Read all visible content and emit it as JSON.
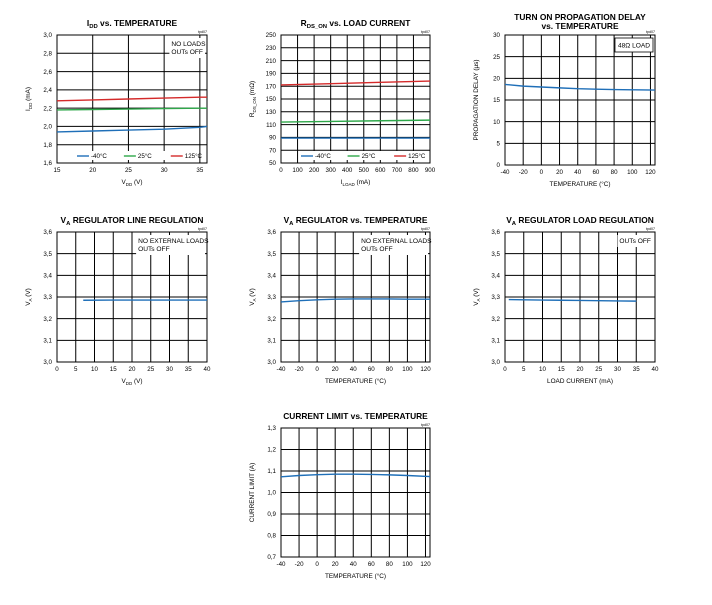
{
  "chart_data": [
    {
      "type": "line",
      "title": "I_DD vs. TEMPERATURE",
      "title_main": "I",
      "title_sub": "DD",
      "title_rest": " vs. TEMPERATURE",
      "tag": "tpd07",
      "xlabel_main": "V",
      "xlabel_sub": "DD",
      "xlabel_rest": " (V)",
      "ylabel_main": "I",
      "ylabel_sub": "DD",
      "ylabel_rest": " (mA)",
      "xlim": [
        15,
        36
      ],
      "ylim": [
        1.6,
        3.0
      ],
      "xticks": [
        15,
        20,
        25,
        30,
        35
      ],
      "xtick_labels": [
        "15",
        "20",
        "25",
        "30",
        "35"
      ],
      "yticks": [
        1.6,
        1.8,
        2.0,
        2.2,
        2.4,
        2.6,
        2.8,
        3.0
      ],
      "ytick_labels": [
        "1,6",
        "1,8",
        "2,0",
        "2,2",
        "2,4",
        "2,6",
        "2,8",
        "3,0"
      ],
      "annotation": [
        "NO LOADS",
        "OUTs OFF"
      ],
      "annotation_pos": "top-right",
      "legend": "bottom",
      "series": [
        {
          "name": "-40°C",
          "color": "#1f6fb8",
          "x": [
            15,
            20,
            25,
            30,
            35,
            36
          ],
          "y": [
            1.94,
            1.95,
            1.96,
            1.97,
            1.99,
            2.0
          ]
        },
        {
          "name": "25°C",
          "color": "#2ea84a",
          "x": [
            15,
            20,
            25,
            30,
            35,
            36
          ],
          "y": [
            2.18,
            2.185,
            2.19,
            2.195,
            2.2,
            2.2
          ]
        },
        {
          "name": "125°C",
          "color": "#d42a2a",
          "x": [
            15,
            20,
            25,
            30,
            35,
            36
          ],
          "y": [
            2.28,
            2.29,
            2.3,
            2.31,
            2.32,
            2.32
          ]
        }
      ]
    },
    {
      "type": "line",
      "title": "R_DS_ON vs. LOAD CURRENT",
      "title_main": "R",
      "title_sub": "DS_ON",
      "title_rest": " vs. LOAD CURRENT",
      "tag": "tpd07",
      "xlabel_main": "I",
      "xlabel_sub": "LOAD",
      "xlabel_rest": " (mA)",
      "ylabel_main": "R",
      "ylabel_sub": "DS_ON",
      "ylabel_rest": " (mΩ)",
      "xlim": [
        0,
        900
      ],
      "ylim": [
        50,
        250
      ],
      "xticks": [
        0,
        100,
        200,
        300,
        400,
        500,
        600,
        700,
        800,
        900
      ],
      "xtick_labels": [
        "0",
        "100",
        "200",
        "300",
        "400",
        "500",
        "600",
        "700",
        "800",
        "900"
      ],
      "yticks": [
        50,
        70,
        90,
        110,
        130,
        150,
        170,
        190,
        210,
        230,
        250
      ],
      "ytick_labels": [
        "50",
        "70",
        "90",
        "110",
        "130",
        "150",
        "170",
        "190",
        "210",
        "230",
        "250"
      ],
      "legend": "bottom",
      "series": [
        {
          "name": "-40°C",
          "color": "#1f6fb8",
          "x": [
            0,
            300,
            600,
            900
          ],
          "y": [
            89,
            89,
            89,
            89
          ]
        },
        {
          "name": "25°C",
          "color": "#2ea84a",
          "x": [
            0,
            300,
            600,
            900
          ],
          "y": [
            114,
            115,
            116,
            117
          ]
        },
        {
          "name": "125°C",
          "color": "#d42a2a",
          "x": [
            0,
            300,
            600,
            900
          ],
          "y": [
            172,
            174,
            176,
            178
          ]
        }
      ]
    },
    {
      "type": "line",
      "title": "TURN ON PROPAGATION DELAY vs. TEMPERATURE",
      "title_lines": [
        "TURN ON PROPAGATION DELAY",
        "vs. TEMPERATURE"
      ],
      "tag": "tpd07",
      "xlabel": "TEMPERATURE (°C)",
      "ylabel": "PROPAGATION DELAY (µs)",
      "xlim": [
        -40,
        125
      ],
      "ylim": [
        0,
        30
      ],
      "xticks": [
        -40,
        -20,
        0,
        20,
        40,
        60,
        80,
        100,
        120
      ],
      "xtick_labels": [
        "-40",
        "-20",
        "0",
        "20",
        "40",
        "60",
        "80",
        "100",
        "120"
      ],
      "yticks": [
        0,
        5,
        10,
        15,
        20,
        25,
        30
      ],
      "ytick_labels": [
        "0",
        "5",
        "10",
        "15",
        "20",
        "25",
        "30"
      ],
      "annotation": [
        "48Ω LOAD"
      ],
      "annotation_boxed": true,
      "annotation_pos": "top-right",
      "series": [
        {
          "color": "#1f6fb8",
          "x": [
            -40,
            -20,
            0,
            20,
            40,
            60,
            80,
            100,
            125
          ],
          "y": [
            18.6,
            18.2,
            18.0,
            17.8,
            17.6,
            17.5,
            17.4,
            17.35,
            17.3
          ]
        }
      ]
    },
    {
      "type": "line",
      "title": "V_A REGULATOR LINE REGULATION",
      "title_main": "V",
      "title_sub": "A",
      "title_rest": " REGULATOR LINE REGULATION",
      "tag": "tpd07",
      "xlabel_main": "V",
      "xlabel_sub": "DD",
      "xlabel_rest": " (V)",
      "ylabel_main": "V",
      "ylabel_sub": "A",
      "ylabel_rest": " (V)",
      "xlim": [
        0,
        40
      ],
      "ylim": [
        3.0,
        3.6
      ],
      "xticks": [
        0,
        5,
        10,
        15,
        20,
        25,
        30,
        35,
        40
      ],
      "xtick_labels": [
        "0",
        "5",
        "10",
        "15",
        "20",
        "25",
        "30",
        "35",
        "40"
      ],
      "yticks": [
        3.0,
        3.1,
        3.2,
        3.3,
        3.4,
        3.5,
        3.6
      ],
      "ytick_labels": [
        "3,0",
        "3,1",
        "3,2",
        "3,3",
        "3,4",
        "3,5",
        "3,6"
      ],
      "annotation": [
        "NO EXTERNAL LOADS",
        "OUTs OFF"
      ],
      "annotation_pos": "top-right",
      "series": [
        {
          "color": "#1f6fb8",
          "x": [
            7,
            15,
            25,
            35,
            40
          ],
          "y": [
            3.285,
            3.286,
            3.286,
            3.286,
            3.286
          ]
        }
      ]
    },
    {
      "type": "line",
      "title": "V_A REGULATOR vs. TEMPERATURE",
      "title_main": "V",
      "title_sub": "A",
      "title_rest": " REGULATOR vs. TEMPERATURE",
      "tag": "tpd07",
      "xlabel": "TEMPERATURE (°C)",
      "ylabel_main": "V",
      "ylabel_sub": "A",
      "ylabel_rest": " (V)",
      "xlim": [
        -40,
        125
      ],
      "ylim": [
        3.0,
        3.6
      ],
      "xticks": [
        -40,
        -20,
        0,
        20,
        40,
        60,
        80,
        100,
        120
      ],
      "xtick_labels": [
        "-40",
        "-20",
        "0",
        "20",
        "40",
        "60",
        "80",
        "100",
        "120"
      ],
      "yticks": [
        3.0,
        3.1,
        3.2,
        3.3,
        3.4,
        3.5,
        3.6
      ],
      "ytick_labels": [
        "3,0",
        "3,1",
        "3,2",
        "3,3",
        "3,4",
        "3,5",
        "3,6"
      ],
      "annotation": [
        "NO EXTERNAL LOADS",
        "OUTs OFF"
      ],
      "annotation_pos": "top-right",
      "series": [
        {
          "color": "#1f6fb8",
          "x": [
            -40,
            -20,
            0,
            20,
            40,
            60,
            80,
            100,
            125
          ],
          "y": [
            3.277,
            3.283,
            3.287,
            3.29,
            3.291,
            3.291,
            3.291,
            3.29,
            3.29
          ]
        }
      ]
    },
    {
      "type": "line",
      "title": "V_A REGULATOR LOAD REGULATION",
      "title_main": "V",
      "title_sub": "A",
      "title_rest": " REGULATOR LOAD REGULATION",
      "tag": "tpd07",
      "xlabel": "LOAD CURRENT (mA)",
      "ylabel_main": "V",
      "ylabel_sub": "A",
      "ylabel_rest": " (V)",
      "xlim": [
        0,
        40
      ],
      "ylim": [
        3.0,
        3.6
      ],
      "xticks": [
        0,
        5,
        10,
        15,
        20,
        25,
        30,
        35,
        40
      ],
      "xtick_labels": [
        "0",
        "5",
        "10",
        "15",
        "20",
        "25",
        "30",
        "35",
        "40"
      ],
      "yticks": [
        3.0,
        3.1,
        3.2,
        3.3,
        3.4,
        3.5,
        3.6
      ],
      "ytick_labels": [
        "3,0",
        "3,1",
        "3,2",
        "3,3",
        "3,4",
        "3,5",
        "3,6"
      ],
      "annotation": [
        "OUTs OFF"
      ],
      "annotation_pos": "top-right",
      "series": [
        {
          "color": "#1f6fb8",
          "x": [
            1,
            5,
            10,
            15,
            20,
            25,
            30,
            35
          ],
          "y": [
            3.288,
            3.287,
            3.286,
            3.285,
            3.284,
            3.283,
            3.282,
            3.281
          ]
        }
      ]
    },
    {
      "type": "line",
      "title": "CURRENT LIMIT vs. TEMPERATURE",
      "tag": "tpd07",
      "xlabel": "TEMPERATURE (°C)",
      "ylabel": "CURRENT LIMIT (A)",
      "xlim": [
        -40,
        125
      ],
      "ylim": [
        0.7,
        1.3
      ],
      "xticks": [
        -40,
        -20,
        0,
        20,
        40,
        60,
        80,
        100,
        120
      ],
      "xtick_labels": [
        "-40",
        "-20",
        "0",
        "20",
        "40",
        "60",
        "80",
        "100",
        "120"
      ],
      "yticks": [
        0.7,
        0.8,
        0.9,
        1.0,
        1.1,
        1.2,
        1.3
      ],
      "ytick_labels": [
        "0,7",
        "0,8",
        "0,9",
        "1,0",
        "1,1",
        "1,2",
        "1,3"
      ],
      "series": [
        {
          "color": "#1f6fb8",
          "x": [
            -40,
            -20,
            0,
            20,
            40,
            60,
            80,
            100,
            125
          ],
          "y": [
            1.073,
            1.079,
            1.083,
            1.085,
            1.085,
            1.084,
            1.082,
            1.079,
            1.074
          ]
        }
      ]
    }
  ]
}
